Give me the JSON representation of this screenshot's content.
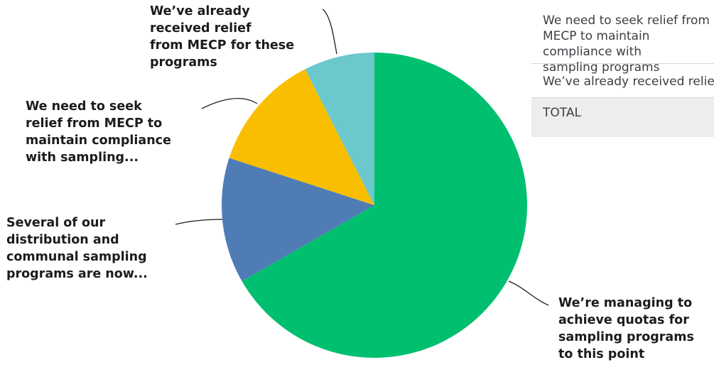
{
  "chart_data": {
    "type": "pie",
    "title": "",
    "slices": [
      {
        "label": "We’re managing to achieve quotas for sampling programs to this point",
        "value": 66.7,
        "color": "#00bf6f"
      },
      {
        "label": "Several of our distribution and communal sampling programs are now...",
        "value": 13.3,
        "color": "#507cb6"
      },
      {
        "label": "We need to seek relief from MECP to maintain compliance with sampling...",
        "value": 12.5,
        "color": "#f9be00"
      },
      {
        "label": "We’ve already received relief from MECP for these programs",
        "value": 7.5,
        "color": "#6bc8cd"
      }
    ],
    "start_angle": "12 o'clock",
    "direction": "clockwise"
  },
  "labels": {
    "already": "We’ve already\nreceived relief\nfrom MECP for these\nprograms",
    "need": "We need to seek\nrelief from MECP to\nmaintain compliance\nwith sampling...",
    "several": "Several of our\ndistribution and\ncommunal sampling\nprograms are now...",
    "managing": "We’re managing to\nachieve quotas for\nsampling programs\nto this point"
  },
  "table": {
    "row1": "We need to seek relief from MECP to maintain compliance with\nsampling programs",
    "row2": "We’ve already received relief from MECP for these programs",
    "total": "TOTAL"
  }
}
